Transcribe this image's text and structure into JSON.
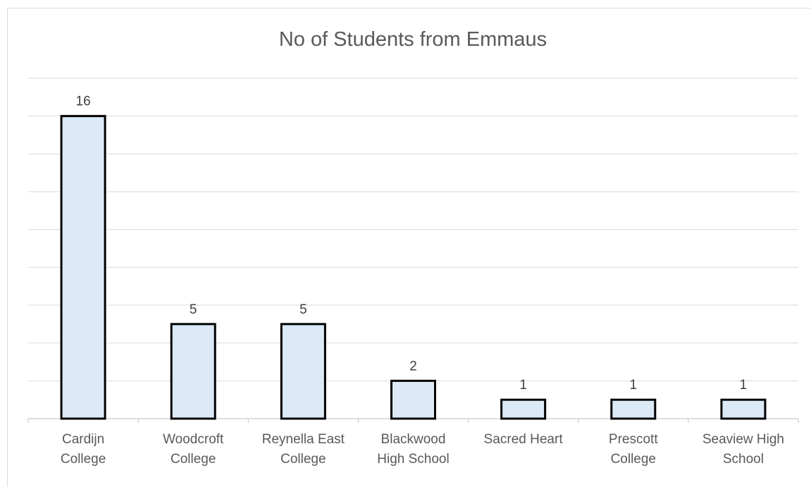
{
  "chart_data": {
    "type": "bar",
    "title": "No of Students from Emmaus",
    "categories": [
      [
        "Cardijn",
        "College"
      ],
      [
        "Woodcroft",
        "College"
      ],
      [
        "Reynella East",
        "College"
      ],
      [
        "Blackwood",
        "High School"
      ],
      [
        "Sacred Heart"
      ],
      [
        "Prescott",
        "College"
      ],
      [
        "Seaview High",
        "School"
      ]
    ],
    "values": [
      16,
      5,
      5,
      2,
      1,
      1,
      1
    ],
    "ylim": [
      0,
      18
    ],
    "grid": true,
    "legend": "none",
    "colors": {
      "bar_fill": "#dce9f7",
      "bar_stroke": "#000000",
      "grid": "#d9d9d9",
      "axis": "#bfbfbf"
    }
  }
}
